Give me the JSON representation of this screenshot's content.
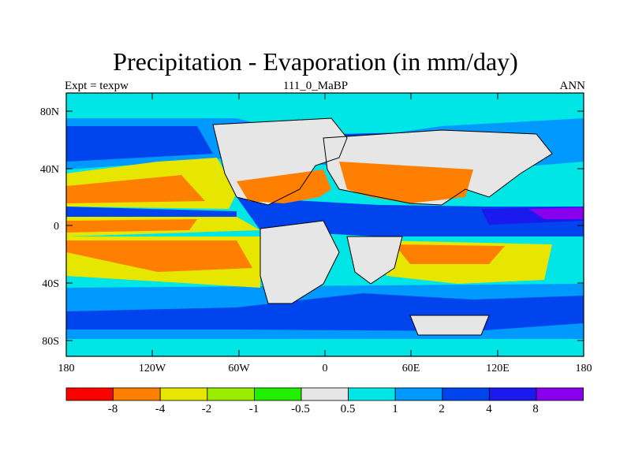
{
  "title": "Precipitation - Evaporation (in mm/day)",
  "subtitle_left": "Expt = texpw",
  "subtitle_center": "111_0_MaBP",
  "subtitle_right": "ANN",
  "lat_ticks": [
    "80N",
    "40N",
    "0",
    "40S",
    "80S"
  ],
  "lon_ticks": [
    "180",
    "120W",
    "60W",
    "0",
    "60E",
    "120E",
    "180"
  ],
  "colorbar": {
    "colors": [
      "#ff0000",
      "#ff8000",
      "#e6e600",
      "#99ee00",
      "#22ee00",
      "#e6e6e6",
      "#00e6e6",
      "#0099ff",
      "#0044ee",
      "#1a1aee",
      "#8800ee"
    ],
    "labels": [
      "-8",
      "-4",
      "-2",
      "-1",
      "-0.5",
      "0.5",
      "1",
      "2",
      "4",
      "8"
    ]
  },
  "colors": {
    "ocean_base": "#00e6e6",
    "land": "#e6e6e6",
    "coast": "#000000"
  }
}
